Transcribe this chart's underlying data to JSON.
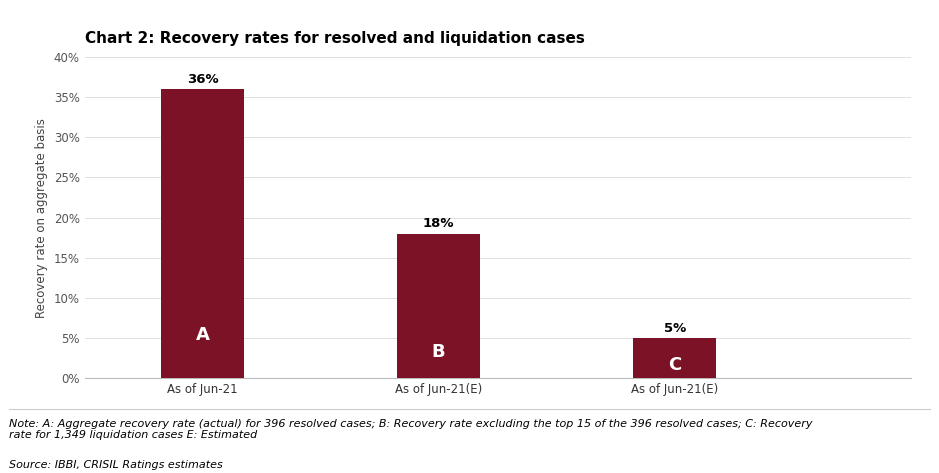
{
  "title": "Chart 2: Recovery rates for resolved and liquidation cases",
  "categories": [
    "As of Jun-21",
    "As of Jun-21(E)",
    "As of Jun-21(E)"
  ],
  "values": [
    36,
    18,
    5
  ],
  "labels_inside": [
    "A",
    "B",
    "C"
  ],
  "bar_color": "#7B1225",
  "ylim": [
    0,
    40
  ],
  "yticks": [
    0,
    5,
    10,
    15,
    20,
    25,
    30,
    35,
    40
  ],
  "ylabel": "Recovery rate on aggregate basis",
  "note_text": "Note: A: Aggregate recovery rate (actual) for 396 resolved cases; B: Recovery rate excluding the top 15 of the 396 resolved cases; C: Recovery\nrate for 1,349 liquidation cases E: Estimated",
  "source": "Source: IBBI, CRISIL Ratings estimates",
  "background_color": "#ffffff",
  "title_fontsize": 11,
  "bar_label_fontsize": 9.5,
  "inside_label_fontsize": 13,
  "axis_label_fontsize": 8.5,
  "tick_fontsize": 8.5,
  "note_fontsize": 8,
  "bar_width": 0.35,
  "x_positions": [
    0.5,
    1.5,
    2.5
  ],
  "xlim": [
    0,
    3.5
  ]
}
